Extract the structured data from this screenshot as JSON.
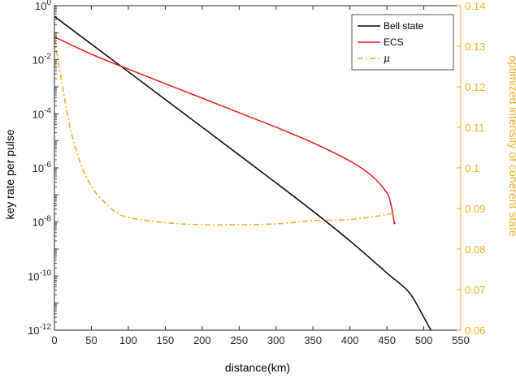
{
  "chart_data": {
    "type": "line",
    "title": "",
    "xlabel": "distance(km)",
    "ylabel": "key rate per pulse",
    "ylabel_right": "optimized intensity of coherent state",
    "xlim": [
      0,
      550
    ],
    "ylim": [
      1e-12,
      1
    ],
    "yscale": "log",
    "ylim_right": [
      0.06,
      0.14
    ],
    "x_ticks": [
      "0",
      "50",
      "100",
      "150",
      "200",
      "250",
      "300",
      "350",
      "400",
      "450",
      "500",
      "550"
    ],
    "y_ticks": [
      {
        "base": "10",
        "exp": "-12"
      },
      {
        "base": "10",
        "exp": "-10"
      },
      {
        "base": "10",
        "exp": "-8"
      },
      {
        "base": "10",
        "exp": "-6"
      },
      {
        "base": "10",
        "exp": "-4"
      },
      {
        "base": "10",
        "exp": "-2"
      },
      {
        "base": "10",
        "exp": "0"
      }
    ],
    "y_right_ticks": [
      "0.06",
      "0.07",
      "0.08",
      "0.09",
      "0.1",
      "0.11",
      "0.12",
      "0.13",
      "0.14"
    ],
    "legend_position": "top-right",
    "grid": false,
    "series": [
      {
        "name": "Bell state",
        "axis": "left",
        "color": "#000000",
        "style": "solid",
        "x": [
          0,
          50,
          100,
          150,
          200,
          250,
          300,
          350,
          400,
          450,
          480,
          500,
          510,
          516
        ],
        "y": [
          0.4,
          0.038,
          0.0036,
          0.00034,
          3.2e-05,
          3e-06,
          2.8e-07,
          2.5e-08,
          2e-09,
          1.3e-10,
          2.5e-11,
          3e-12,
          1e-12,
          1e-12
        ]
      },
      {
        "name": "ECS",
        "axis": "left",
        "color": "#E31A1C",
        "style": "solid",
        "x": [
          0,
          50,
          100,
          150,
          200,
          250,
          300,
          350,
          400,
          430,
          450,
          455,
          458,
          460,
          461
        ],
        "y": [
          0.07,
          0.016,
          0.0045,
          0.0013,
          0.00038,
          0.00011,
          3.2e-05,
          8.5e-06,
          1.8e-06,
          5e-07,
          1.2e-07,
          5e-08,
          2e-08,
          9e-09,
          1e-08
        ]
      },
      {
        "name": "μ",
        "axis": "right",
        "color": "#E6B01A",
        "style": "dashdot",
        "x": [
          0,
          10,
          20,
          30,
          40,
          50,
          60,
          80,
          100,
          150,
          200,
          250,
          300,
          350,
          400,
          450,
          460
        ],
        "y": [
          0.132,
          0.121,
          0.111,
          0.104,
          0.099,
          0.0955,
          0.093,
          0.0895,
          0.0878,
          0.0865,
          0.086,
          0.086,
          0.0862,
          0.087,
          0.0873,
          0.0885,
          0.0892
        ]
      }
    ]
  }
}
